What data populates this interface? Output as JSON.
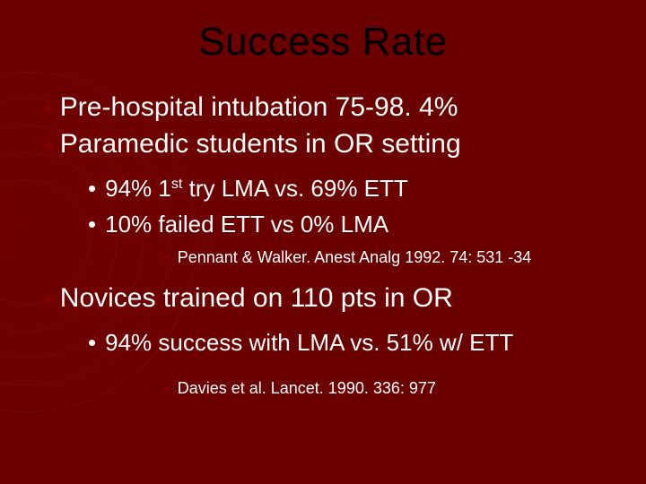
{
  "title": "Success Rate",
  "items": {
    "l1_a": "Pre-hospital intubation 75-98. 4%",
    "l1_b": "Paramedic students in OR setting",
    "l2_a_pre": "94% 1",
    "l2_a_sup": "st",
    "l2_a_post": " try LMA vs. 69% ETT",
    "l2_b": "10% failed ETT vs 0% LMA",
    "l3_a": "Pennant & Walker. Anest Analg 1992. 74: 531 -34",
    "l1_c": "Novices trained on 110 pts in OR",
    "l2_c": "94% success with LMA vs. 51% w/ ETT",
    "l3_b": "Davies et al. Lancet. 1990. 336: 977"
  },
  "bullets": {
    "diamond": "◆",
    "dot": "•"
  },
  "colors": {
    "background": "#6b0000",
    "title": "#000000",
    "text": "#ffffff",
    "diamond": "#800000"
  }
}
